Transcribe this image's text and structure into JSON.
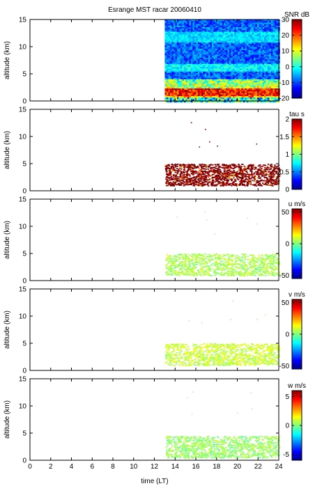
{
  "title": "Esrange MST racar 20060410",
  "chart_data": [
    {
      "type": "heatmap",
      "ylabel": "altitude (km)",
      "ylim": [
        0,
        15
      ],
      "yticks": [
        "0",
        "5",
        "10",
        "15"
      ],
      "xlim": [
        0,
        24
      ],
      "colorbar": {
        "label": "SNR dB",
        "ticks": [
          "30",
          "20",
          "10",
          "0",
          "-10",
          "-20"
        ],
        "range": [
          -20,
          30
        ]
      },
      "data": {
        "time_start": 13.0,
        "time_end": 24.0,
        "altitude_range": [
          0,
          15
        ],
        "strong_layer_km": [
          1.0,
          2.5
        ]
      }
    },
    {
      "type": "heatmap",
      "ylabel": "altitude (km)",
      "ylim": [
        0,
        15
      ],
      "yticks": [
        "0",
        "5",
        "10",
        "15"
      ],
      "xlim": [
        0,
        24
      ],
      "colorbar": {
        "label": "tau s",
        "ticks": [
          "2",
          "1.5",
          "1",
          "0.5",
          "0"
        ],
        "range": [
          0,
          2
        ]
      },
      "data": {
        "time_start": 13.0,
        "time_end": 24.0,
        "altitude_range": [
          1,
          5
        ],
        "dominant_value": 2.0
      }
    },
    {
      "type": "heatmap",
      "ylabel": "altitude (km)",
      "ylim": [
        0,
        15
      ],
      "yticks": [
        "0",
        "5",
        "10",
        "15"
      ],
      "xlim": [
        0,
        24
      ],
      "colorbar": {
        "label": "u m/s",
        "ticks": [
          "50",
          "0",
          "-50"
        ],
        "range": [
          -55,
          55
        ]
      },
      "data": {
        "time_start": 13.0,
        "time_end": 24.0,
        "altitude_range": [
          1,
          5
        ],
        "dominant_value": 5
      }
    },
    {
      "type": "heatmap",
      "ylabel": "altitude (km)",
      "ylim": [
        0,
        15
      ],
      "yticks": [
        "0",
        "5",
        "10",
        "15"
      ],
      "xlim": [
        0,
        24
      ],
      "colorbar": {
        "label": "v m/s",
        "ticks": [
          "50",
          "0",
          "-50"
        ],
        "range": [
          -55,
          55
        ]
      },
      "data": {
        "time_start": 13.0,
        "time_end": 24.0,
        "altitude_range": [
          1,
          5
        ],
        "dominant_value": 8
      }
    },
    {
      "type": "heatmap",
      "ylabel": "altitude (km)",
      "ylim": [
        0,
        15
      ],
      "yticks": [
        "0",
        "5",
        "10",
        "15"
      ],
      "xlim": [
        0,
        24
      ],
      "xlabel": "time (LT)",
      "xticks": [
        "0",
        "2",
        "4",
        "6",
        "8",
        "10",
        "12",
        "14",
        "16",
        "18",
        "20",
        "22",
        "24"
      ],
      "colorbar": {
        "label": "w m/s",
        "ticks": [
          "5",
          "0",
          "-5"
        ],
        "range": [
          -6,
          6
        ]
      },
      "data": {
        "time_start": 13.0,
        "time_end": 24.0,
        "altitude_range": [
          0.5,
          4.5
        ],
        "dominant_value": 0.3
      }
    }
  ]
}
